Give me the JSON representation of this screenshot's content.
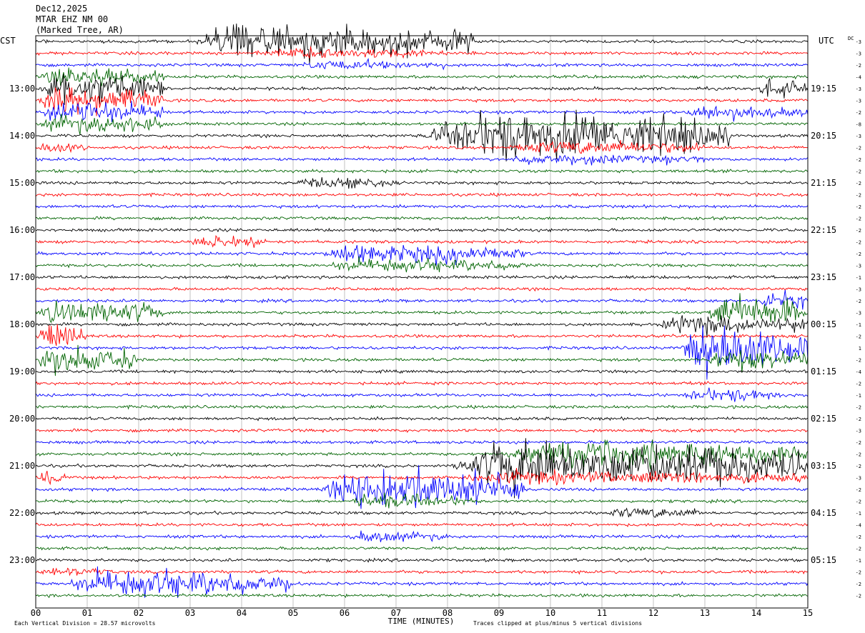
{
  "header": {
    "date": "Dec12,2025",
    "station": "MTAR EHZ NM 00",
    "location": "(Marked Tree, AR)"
  },
  "axes": {
    "left_label": "CST",
    "right_label": "UTC",
    "dc_label": "DC",
    "x_title": "TIME (MINUTES)",
    "x_ticks": [
      "00",
      "01",
      "02",
      "03",
      "04",
      "05",
      "06",
      "07",
      "08",
      "09",
      "10",
      "11",
      "12",
      "13",
      "14",
      "15"
    ],
    "left_hours": [
      "13:00",
      "14:00",
      "15:00",
      "16:00",
      "17:00",
      "18:00",
      "19:00",
      "20:00",
      "21:00",
      "22:00",
      "23:00"
    ],
    "right_hours": [
      "19:15",
      "20:15",
      "21:15",
      "22:15",
      "23:15",
      "00:15",
      "01:15",
      "02:15",
      "03:15",
      "04:15",
      "05:15"
    ]
  },
  "footer": {
    "scale_note": "Each Vertical Division =   28.57 microvolts",
    "clip_note": "Traces clipped at plus/minus 5 vertical divisions"
  },
  "chart_data": {
    "type": "line",
    "x_range_minutes": [
      0,
      15
    ],
    "trace_minutes": 15,
    "trace_count": 48,
    "first_hour_cst": "12:15",
    "color_cycle": [
      "#000000",
      "#ff0000",
      "#0000ff",
      "#006400"
    ],
    "grid": true,
    "dc_offsets": [
      -3,
      -3,
      -2,
      -4,
      -3,
      -3,
      -2,
      -8,
      -3,
      -2,
      -2,
      -2,
      -2,
      -2,
      -2,
      -2,
      -2,
      -2,
      -2,
      -3,
      -1,
      -3,
      -2,
      -3,
      -1,
      -2,
      1,
      -2,
      -4,
      -2,
      -1,
      -2,
      -2,
      -3,
      -2,
      -2,
      -2,
      -3,
      -2,
      -2,
      -1,
      -4,
      -2,
      -2,
      -1,
      -2,
      -2,
      -2
    ],
    "events": [
      {
        "trace": 0,
        "start_min": 3.0,
        "end_min": 8.5,
        "amplitude": 4.0
      },
      {
        "trace": 1,
        "start_min": 4.0,
        "end_min": 8.0,
        "amplitude": 1.2
      },
      {
        "trace": 2,
        "start_min": 5.0,
        "end_min": 8.0,
        "amplitude": 1.0
      },
      {
        "trace": 3,
        "start_min": 0.0,
        "end_min": 2.5,
        "amplitude": 2.0
      },
      {
        "trace": 4,
        "start_min": 0.0,
        "end_min": 2.5,
        "amplitude": 3.5
      },
      {
        "trace": 4,
        "start_min": 14.0,
        "end_min": 15.0,
        "amplitude": 2.0
      },
      {
        "trace": 5,
        "start_min": 0.0,
        "end_min": 2.5,
        "amplitude": 3.0
      },
      {
        "trace": 6,
        "start_min": 0.0,
        "end_min": 2.5,
        "amplitude": 2.5
      },
      {
        "trace": 6,
        "start_min": 12.5,
        "end_min": 15.0,
        "amplitude": 1.5
      },
      {
        "trace": 7,
        "start_min": 0.0,
        "end_min": 2.5,
        "amplitude": 2.0
      },
      {
        "trace": 8,
        "start_min": 7.5,
        "end_min": 13.5,
        "amplitude": 5.0
      },
      {
        "trace": 9,
        "start_min": 0.0,
        "end_min": 1.0,
        "amplitude": 1.2
      },
      {
        "trace": 9,
        "start_min": 9.0,
        "end_min": 13.0,
        "amplitude": 1.5
      },
      {
        "trace": 10,
        "start_min": 9.0,
        "end_min": 13.0,
        "amplitude": 1.2
      },
      {
        "trace": 12,
        "start_min": 5.0,
        "end_min": 7.0,
        "amplitude": 1.2
      },
      {
        "trace": 17,
        "start_min": 3.0,
        "end_min": 4.5,
        "amplitude": 1.5
      },
      {
        "trace": 18,
        "start_min": 5.5,
        "end_min": 9.5,
        "amplitude": 2.2
      },
      {
        "trace": 19,
        "start_min": 5.5,
        "end_min": 9.5,
        "amplitude": 1.5
      },
      {
        "trace": 22,
        "start_min": 14.0,
        "end_min": 15.0,
        "amplitude": 2.0
      },
      {
        "trace": 23,
        "start_min": 0.0,
        "end_min": 2.5,
        "amplitude": 2.5
      },
      {
        "trace": 23,
        "start_min": 13.0,
        "end_min": 15.0,
        "amplitude": 3.5
      },
      {
        "trace": 24,
        "start_min": 12.0,
        "end_min": 15.0,
        "amplitude": 2.0
      },
      {
        "trace": 25,
        "start_min": 0.0,
        "end_min": 1.0,
        "amplitude": 2.5
      },
      {
        "trace": 26,
        "start_min": 12.5,
        "end_min": 15.0,
        "amplitude": 5.0
      },
      {
        "trace": 27,
        "start_min": 0.0,
        "end_min": 2.0,
        "amplitude": 3.0
      },
      {
        "trace": 27,
        "start_min": 13.0,
        "end_min": 15.0,
        "amplitude": 2.5
      },
      {
        "trace": 30,
        "start_min": 12.5,
        "end_min": 14.5,
        "amplitude": 1.5
      },
      {
        "trace": 35,
        "start_min": 9.0,
        "end_min": 15.0,
        "amplitude": 3.0
      },
      {
        "trace": 36,
        "start_min": 8.0,
        "end_min": 15.0,
        "amplitude": 5.0
      },
      {
        "trace": 37,
        "start_min": 0.0,
        "end_min": 0.6,
        "amplitude": 1.5
      },
      {
        "trace": 37,
        "start_min": 8.0,
        "end_min": 15.0,
        "amplitude": 1.5
      },
      {
        "trace": 38,
        "start_min": 5.5,
        "end_min": 9.5,
        "amplitude": 4.5
      },
      {
        "trace": 39,
        "start_min": 6.0,
        "end_min": 8.5,
        "amplitude": 1.5
      },
      {
        "trace": 40,
        "start_min": 11.0,
        "end_min": 13.0,
        "amplitude": 1.2
      },
      {
        "trace": 42,
        "start_min": 6.0,
        "end_min": 8.0,
        "amplitude": 1.2
      },
      {
        "trace": 45,
        "start_min": 0.0,
        "end_min": 1.5,
        "amplitude": 1.0
      },
      {
        "trace": 46,
        "start_min": 0.5,
        "end_min": 5.0,
        "amplitude": 3.0
      }
    ]
  }
}
